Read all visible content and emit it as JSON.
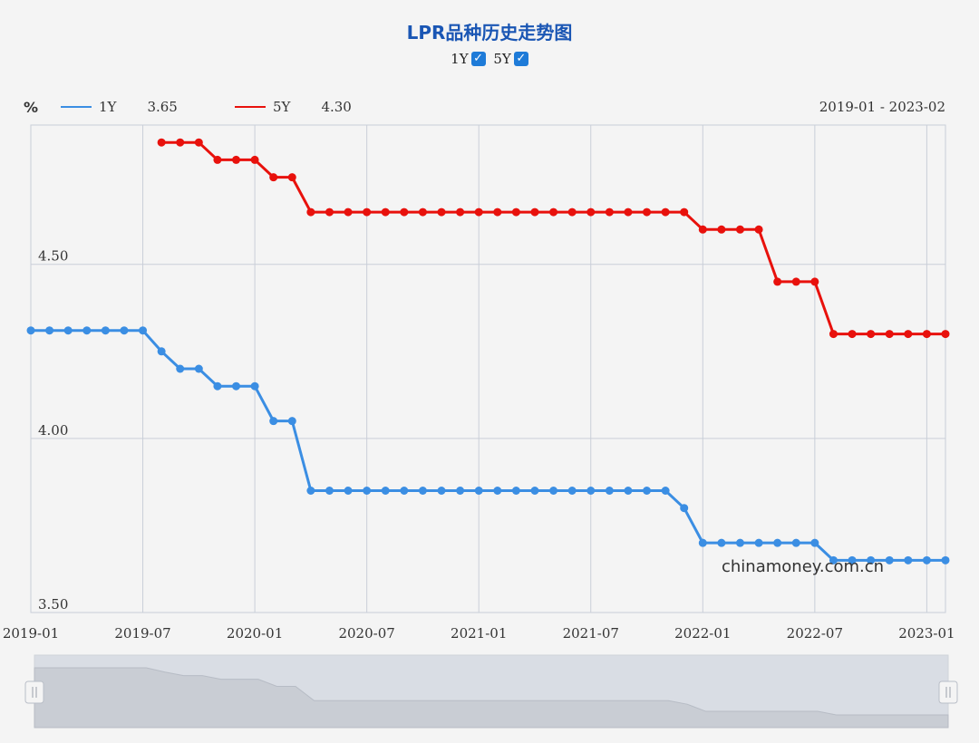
{
  "title": "LPR品种历史走势图",
  "toggles": [
    {
      "label": "1Y",
      "checked": true
    },
    {
      "label": "5Y",
      "checked": true
    }
  ],
  "legend": {
    "unit": "%",
    "items": [
      {
        "name": "1Y",
        "value": "3.65",
        "color": "#3b8ee3"
      },
      {
        "name": "5Y",
        "value": "4.30",
        "color": "#e8110c"
      }
    ],
    "range": "2019-01 - 2023-02"
  },
  "watermark": "chinamoney.com.cn",
  "chart_data": {
    "type": "line",
    "ylim": [
      3.5,
      4.9
    ],
    "y_ticks": [
      "3.50",
      "4.00",
      "4.50"
    ],
    "x_ticks": [
      "2019-01",
      "2019-07",
      "2020-01",
      "2020-07",
      "2021-01",
      "2021-07",
      "2022-01",
      "2022-07",
      "2023-01"
    ],
    "x": [
      "2019-01",
      "2019-02",
      "2019-03",
      "2019-04",
      "2019-05",
      "2019-06",
      "2019-07",
      "2019-08",
      "2019-09",
      "2019-10",
      "2019-11",
      "2019-12",
      "2020-01",
      "2020-02",
      "2020-03",
      "2020-04",
      "2020-05",
      "2020-06",
      "2020-07",
      "2020-08",
      "2020-09",
      "2020-10",
      "2020-11",
      "2020-12",
      "2021-01",
      "2021-02",
      "2021-03",
      "2021-04",
      "2021-05",
      "2021-06",
      "2021-07",
      "2021-08",
      "2021-09",
      "2021-10",
      "2021-11",
      "2021-12",
      "2022-01",
      "2022-02",
      "2022-03",
      "2022-04",
      "2022-05",
      "2022-06",
      "2022-07",
      "2022-08",
      "2022-09",
      "2022-10",
      "2022-11",
      "2022-12",
      "2023-01",
      "2023-02"
    ],
    "series": [
      {
        "name": "1Y",
        "values": [
          4.31,
          4.31,
          4.31,
          4.31,
          4.31,
          4.31,
          4.31,
          4.25,
          4.2,
          4.2,
          4.15,
          4.15,
          4.15,
          4.05,
          4.05,
          3.85,
          3.85,
          3.85,
          3.85,
          3.85,
          3.85,
          3.85,
          3.85,
          3.85,
          3.85,
          3.85,
          3.85,
          3.85,
          3.85,
          3.85,
          3.85,
          3.85,
          3.85,
          3.85,
          3.85,
          3.8,
          3.7,
          3.7,
          3.7,
          3.7,
          3.7,
          3.7,
          3.7,
          3.65,
          3.65,
          3.65,
          3.65,
          3.65,
          3.65,
          3.65
        ]
      },
      {
        "name": "5Y",
        "values": [
          null,
          null,
          null,
          null,
          null,
          null,
          null,
          4.85,
          4.85,
          4.85,
          4.8,
          4.8,
          4.8,
          4.75,
          4.75,
          4.65,
          4.65,
          4.65,
          4.65,
          4.65,
          4.65,
          4.65,
          4.65,
          4.65,
          4.65,
          4.65,
          4.65,
          4.65,
          4.65,
          4.65,
          4.65,
          4.65,
          4.65,
          4.65,
          4.65,
          4.65,
          4.6,
          4.6,
          4.6,
          4.6,
          4.45,
          4.45,
          4.45,
          4.3,
          4.3,
          4.3,
          4.3,
          4.3,
          4.3,
          4.3
        ]
      }
    ]
  }
}
